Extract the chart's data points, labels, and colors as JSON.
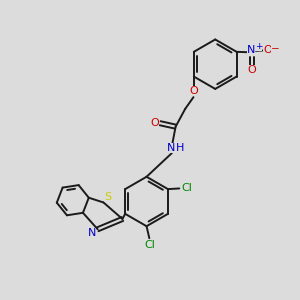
{
  "bg_color": "#dcdcdc",
  "bond_color": "#1a1a1a",
  "lw": 1.4,
  "dbo": 0.06,
  "colors": {
    "N": "#0000cc",
    "O": "#cc0000",
    "S": "#cccc00",
    "Cl": "#008800",
    "C": "#1a1a1a"
  },
  "fontsize": 7.5
}
